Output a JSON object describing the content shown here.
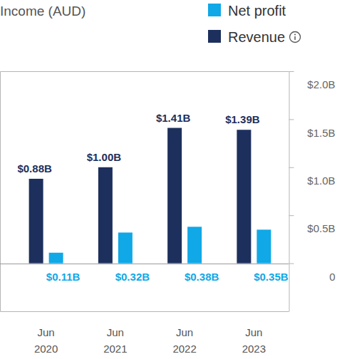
{
  "chart_data": {
    "type": "bar",
    "title": "Income (AUD)",
    "categories": [
      "Jun 2020",
      "Jun 2021",
      "Jun 2022",
      "Jun 2023"
    ],
    "series": [
      {
        "name": "Revenue",
        "color": "#1d2f5c",
        "values": [
          0.88,
          1.0,
          1.41,
          1.39
        ],
        "value_labels": [
          "$0.88B",
          "$1.00B",
          "$1.41B",
          "$1.39B"
        ]
      },
      {
        "name": "Net profit",
        "color": "#10a8e6",
        "values": [
          0.11,
          0.32,
          0.38,
          0.35
        ],
        "value_labels": [
          "$0.11B",
          "$0.32B",
          "$0.38B",
          "$0.35B"
        ]
      }
    ],
    "ylim": [
      -0.5,
      2.0
    ],
    "yticks": [
      0,
      {
        "value": 0.5,
        "label": "$0.5B"
      },
      {
        "value": 1.0,
        "label": "$1.0B"
      },
      {
        "value": 1.5,
        "label": "$1.5B"
      },
      {
        "value": 2.0,
        "label": "$2.0B"
      }
    ],
    "grid": false,
    "data_labels": true,
    "legend": "top-right"
  }
}
